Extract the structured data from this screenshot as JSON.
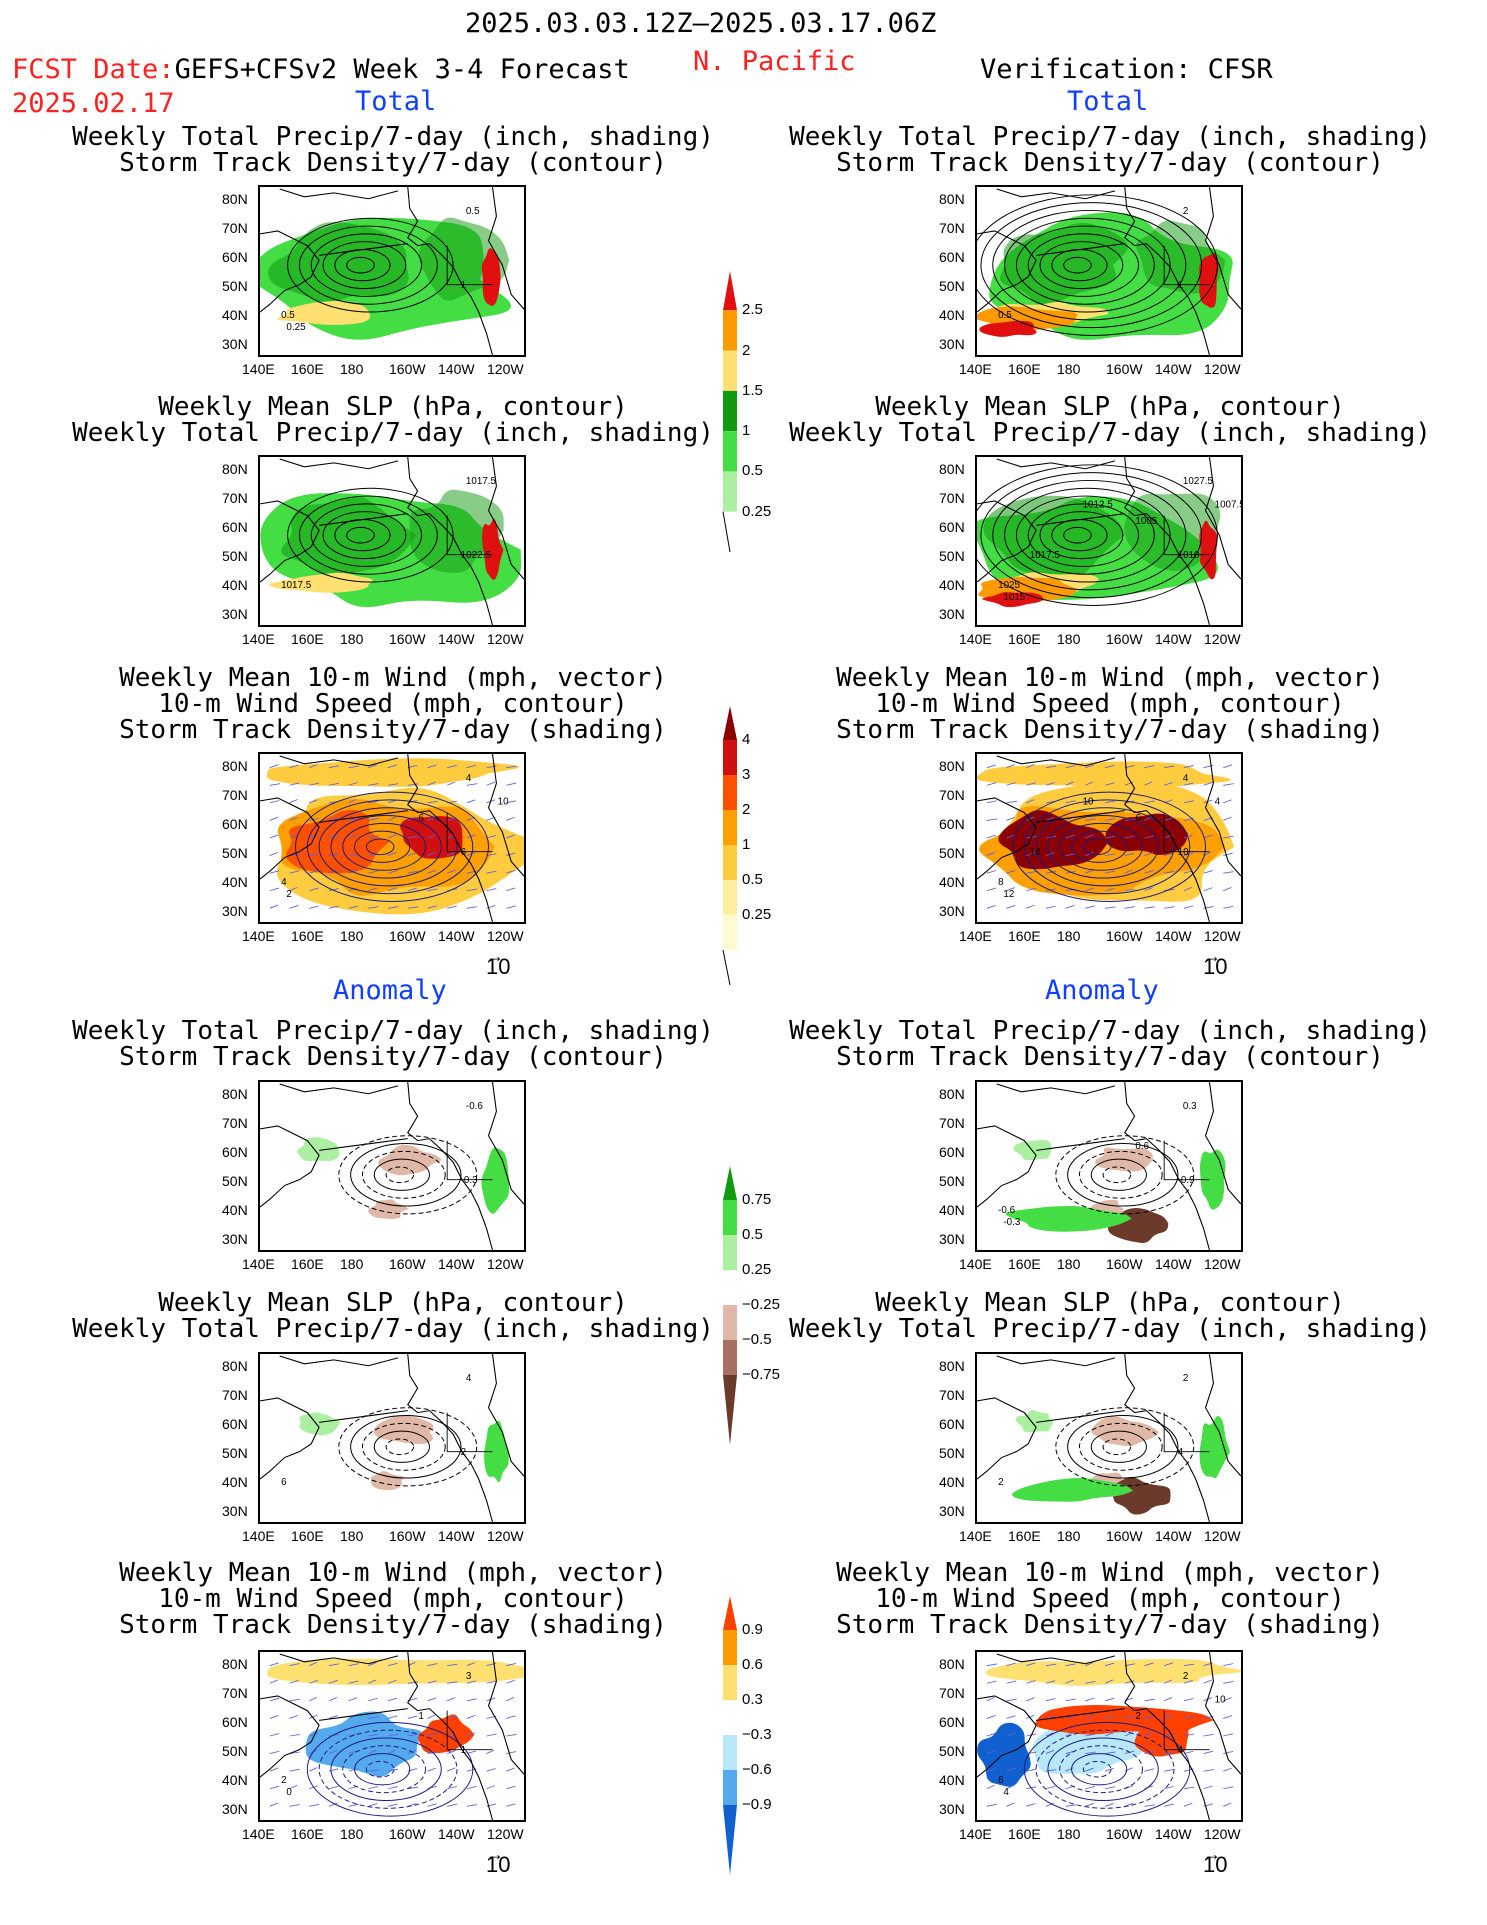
{
  "header": {
    "date_range": "2025.03.03.12Z–2025.03.17.06Z",
    "fcst_label": "FCST Date:",
    "model": "GEFS+CFSv2 Week 3-4 Forecast",
    "fcst_date": "2025.02.17",
    "region": "N. Pacific",
    "verification": "Verification: CFSR"
  },
  "sections": {
    "total_left": "Total",
    "total_right": "Total",
    "anomaly_left": "Anomaly",
    "anomaly_right": "Anomaly"
  },
  "titles": {
    "precip_storm": [
      "Weekly Total Precip/7-day (inch, shading)",
      "Storm Track Density/7-day (contour)"
    ],
    "slp_precip": [
      "Weekly Mean SLP (hPa, contour)",
      "Weekly Total Precip/7-day (inch, shading)"
    ],
    "wind_storm": [
      "Weekly Mean 10-m Wind (mph, vector)",
      "10-m Wind Speed (mph, contour)",
      "Storm Track Density/7-day (shading)"
    ]
  },
  "axes": {
    "lat_ticks": [
      "80N",
      "70N",
      "60N",
      "50N",
      "40N",
      "30N"
    ],
    "lon_ticks": [
      "140E",
      "160E",
      "180",
      "160W",
      "140W",
      "120W"
    ]
  },
  "vector_reference": "10",
  "colorbars": {
    "precip_total": {
      "labels": [
        "2.5",
        "2",
        "1.5",
        "1",
        "0.5",
        "0.25"
      ],
      "colors": [
        "#e01010",
        "#ff9900",
        "#ffe070",
        "#119911",
        "#44dd44",
        "#aaf0a0"
      ]
    },
    "storm_total": {
      "labels": [
        "4",
        "3",
        "2",
        "1",
        "0.5",
        "0.25"
      ],
      "colors": [
        "#8b0000",
        "#d01010",
        "#ff5000",
        "#ffa000",
        "#ffcc40",
        "#fff0a0",
        "#fffbd0"
      ]
    },
    "precip_anom": {
      "labels": [
        "0.75",
        "0.5",
        "0.25",
        "−0.25",
        "−0.5",
        "−0.75"
      ],
      "colors": [
        "#119911",
        "#44dd44",
        "#aaf0a0",
        "#ffffff",
        "#e0b8a8",
        "#a87060",
        "#6b3a2a"
      ]
    },
    "storm_anom": {
      "labels": [
        "0.9",
        "0.6",
        "0.3",
        "−0.3",
        "−0.6",
        "−0.9"
      ],
      "colors": [
        "#ff4000",
        "#ff9900",
        "#ffe070",
        "#ffffff",
        "#b8e8f8",
        "#55aaee",
        "#1060d0"
      ]
    }
  },
  "panel_labels": {
    "lt_precip": [
      "0.5",
      "1",
      "0.5",
      "0.25"
    ],
    "rt_precip": [
      "2",
      "1",
      "0.5"
    ],
    "lt_slp": [
      "1017.5",
      "1022.5",
      "1017.5"
    ],
    "rt_slp": [
      "1027.5",
      "1010",
      "1025",
      "1015",
      "1005",
      "1007.5",
      "1012.5",
      "1017.5"
    ],
    "lt_wind": [
      "4",
      "6",
      "4",
      "2",
      "6",
      "10"
    ],
    "rt_wind": [
      "4",
      "10",
      "8",
      "12",
      "6",
      "4",
      "10",
      "14"
    ],
    "la_precip": [
      "-0.6",
      "-0.3"
    ],
    "ra_precip": [
      "0.3",
      "-0.9",
      "-0.6",
      "-0.3",
      "0.6"
    ],
    "la_slp": [
      "4",
      "2",
      "6"
    ],
    "ra_slp": [
      "2",
      "4",
      "2"
    ],
    "la_wind": [
      "3",
      "1",
      "2",
      "0",
      "1"
    ],
    "ra_wind": [
      "2",
      "4",
      "6",
      "4",
      "2",
      "10"
    ]
  }
}
